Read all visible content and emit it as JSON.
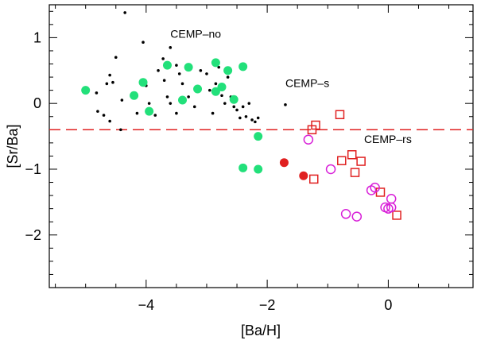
{
  "chart_data": {
    "type": "scatter",
    "xlabel": "[Ba/H]",
    "ylabel": "[Sr/Ba]",
    "xlim": [
      -5.6,
      1.4
    ],
    "ylim": [
      -2.8,
      1.5
    ],
    "x_ticks": [
      -4,
      -2,
      0
    ],
    "x_tick_labels": [
      "−4",
      "−2",
      "0"
    ],
    "y_ticks": [
      -2,
      -1,
      0,
      1
    ],
    "y_tick_labels": [
      "−2",
      "−1",
      "0",
      "1"
    ],
    "hline": {
      "y": -0.4,
      "color": "#e02020",
      "style": "dashed"
    },
    "annotations": [
      {
        "text": "CEMP–no",
        "x": -3.6,
        "y": 1.0
      },
      {
        "text": "CEMP–s",
        "x": -1.7,
        "y": 0.25
      },
      {
        "text": "CEMP–rs",
        "x": -0.4,
        "y": -0.6
      }
    ],
    "series": [
      {
        "name": "black-dots",
        "marker": "dot",
        "color": "#000000",
        "points": [
          [
            -4.35,
            1.38
          ],
          [
            -4.05,
            0.93
          ],
          [
            -3.72,
            0.68
          ],
          [
            -3.6,
            0.85
          ],
          [
            -3.5,
            0.58
          ],
          [
            -4.5,
            0.7
          ],
          [
            -4.6,
            0.43
          ],
          [
            -4.55,
            0.32
          ],
          [
            -4.65,
            0.3
          ],
          [
            -4.82,
            0.16
          ],
          [
            -4.8,
            -0.12
          ],
          [
            -4.7,
            -0.18
          ],
          [
            -4.6,
            -0.27
          ],
          [
            -4.4,
            0.05
          ],
          [
            -4.2,
            0.1
          ],
          [
            -4.15,
            -0.15
          ],
          [
            -4.0,
            0.27
          ],
          [
            -3.95,
            0.0
          ],
          [
            -3.85,
            -0.18
          ],
          [
            -3.8,
            0.5
          ],
          [
            -3.7,
            0.35
          ],
          [
            -3.65,
            0.1
          ],
          [
            -3.6,
            0.0
          ],
          [
            -3.5,
            -0.15
          ],
          [
            -3.45,
            0.45
          ],
          [
            -3.4,
            0.3
          ],
          [
            -3.3,
            0.1
          ],
          [
            -3.2,
            -0.05
          ],
          [
            -3.1,
            0.5
          ],
          [
            -3.0,
            0.45
          ],
          [
            -2.95,
            0.2
          ],
          [
            -2.9,
            -0.15
          ],
          [
            -2.85,
            0.3
          ],
          [
            -2.8,
            0.55
          ],
          [
            -2.75,
            0.12
          ],
          [
            -2.7,
            0.0
          ],
          [
            -2.65,
            0.4
          ],
          [
            -2.6,
            0.1
          ],
          [
            -2.55,
            -0.05
          ],
          [
            -2.5,
            -0.1
          ],
          [
            -2.4,
            -0.05
          ],
          [
            -2.35,
            -0.2
          ],
          [
            -2.3,
            0.0
          ],
          [
            -2.25,
            -0.25
          ],
          [
            -2.2,
            -0.28
          ],
          [
            -2.15,
            -0.22
          ],
          [
            -2.45,
            -0.22
          ],
          [
            -3.15,
            0.2
          ],
          [
            -4.42,
            -0.4
          ],
          [
            -1.7,
            -0.02
          ]
        ]
      },
      {
        "name": "green-circles",
        "marker": "filled-circle",
        "color": "#22e07a",
        "points": [
          [
            -5.0,
            0.2
          ],
          [
            -4.2,
            0.12
          ],
          [
            -4.05,
            0.32
          ],
          [
            -3.95,
            -0.12
          ],
          [
            -3.65,
            0.58
          ],
          [
            -3.4,
            0.05
          ],
          [
            -3.3,
            0.55
          ],
          [
            -3.15,
            0.22
          ],
          [
            -2.85,
            0.62
          ],
          [
            -2.85,
            0.18
          ],
          [
            -2.75,
            0.25
          ],
          [
            -2.65,
            0.5
          ],
          [
            -2.55,
            0.06
          ],
          [
            -2.4,
            0.56
          ],
          [
            -2.15,
            -0.5
          ],
          [
            -2.4,
            -0.98
          ],
          [
            -2.15,
            -1.0
          ]
        ]
      },
      {
        "name": "red-filled-circles",
        "marker": "filled-circle",
        "color": "#e02020",
        "points": [
          [
            -1.72,
            -0.9
          ],
          [
            -1.4,
            -1.1
          ]
        ]
      },
      {
        "name": "red-open-squares",
        "marker": "open-square",
        "color": "#e02020",
        "points": [
          [
            -0.8,
            -0.17
          ],
          [
            -1.2,
            -0.33
          ],
          [
            -1.26,
            -0.4
          ],
          [
            -0.77,
            -0.87
          ],
          [
            -0.6,
            -0.78
          ],
          [
            -0.45,
            -0.88
          ],
          [
            -0.55,
            -1.05
          ],
          [
            -1.23,
            -1.15
          ],
          [
            -0.13,
            -1.35
          ],
          [
            0.14,
            -1.7
          ]
        ]
      },
      {
        "name": "magenta-open-circles",
        "marker": "open-circle",
        "color": "#d820d8",
        "points": [
          [
            -1.32,
            -0.55
          ],
          [
            -0.95,
            -1.0
          ],
          [
            -0.22,
            -1.28
          ],
          [
            -0.28,
            -1.32
          ],
          [
            0.05,
            -1.45
          ],
          [
            -0.05,
            -1.58
          ],
          [
            0.0,
            -1.6
          ],
          [
            0.05,
            -1.58
          ],
          [
            -0.7,
            -1.68
          ],
          [
            -0.52,
            -1.72
          ]
        ]
      }
    ]
  }
}
